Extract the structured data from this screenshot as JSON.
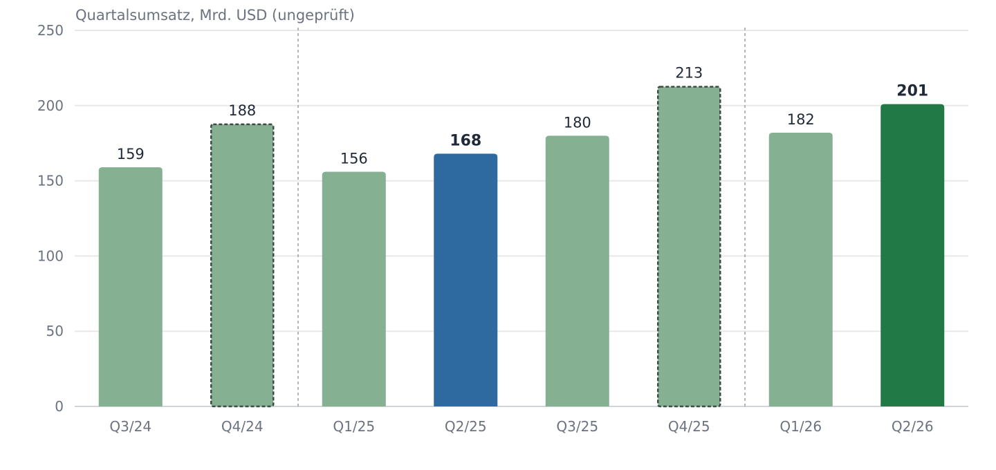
{
  "chart_data": {
    "type": "bar",
    "ylabel": "Quartalsumsatz, Mrd. USD (ungeprüft)",
    "xlabel": "",
    "ylim": [
      0,
      250
    ],
    "yticks": [
      0,
      50,
      100,
      150,
      200,
      250
    ],
    "categories": [
      "Q3/24",
      "Q4/24",
      "Q1/25",
      "Q2/25",
      "Q3/25",
      "Q4/25",
      "Q1/26",
      "Q2/26"
    ],
    "values": [
      159,
      188,
      156,
      168,
      180,
      213,
      182,
      201
    ],
    "data_labels": [
      "159",
      "188",
      "156",
      "168",
      "180",
      "213",
      "182",
      "201"
    ],
    "bar_styles": [
      "normal",
      "dashed",
      "normal",
      "highlight-blue",
      "normal",
      "dashed",
      "normal",
      "highlight-green"
    ],
    "bold_labels": [
      false,
      false,
      false,
      true,
      false,
      false,
      false,
      true
    ],
    "separators_after": [
      "Q4/24",
      "Q4/25"
    ],
    "grid": true,
    "legend": "none",
    "colors": {
      "normal": "#86b092",
      "highlight-blue": "#2e6aa0",
      "highlight-green": "#217a46",
      "dashed_stroke": "#3f4b45",
      "grid": "#e8e8e8",
      "separator": "#9ca3af",
      "axis": "#d1d5db",
      "tick_text": "#6b7280",
      "value_text": "#1f2937"
    }
  }
}
